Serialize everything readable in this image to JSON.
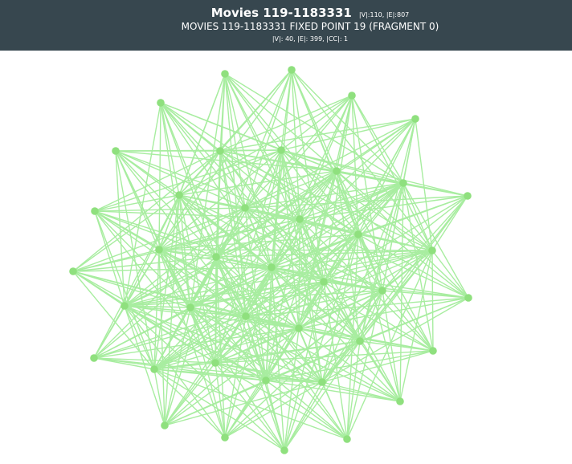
{
  "header": {
    "title": "Movies 119-1183331",
    "title_stats": "|V|:110, |E|:807",
    "subtitle": "MOVIES 119-1183331 FIXED POINT 19 (FRAGMENT 0)",
    "substats": "|V|: 40, |E|: 399, |CC|: 1"
  },
  "colors": {
    "header_bg": "#37474f",
    "edge": "#a8eda0",
    "node": "#8fe07e"
  }
}
